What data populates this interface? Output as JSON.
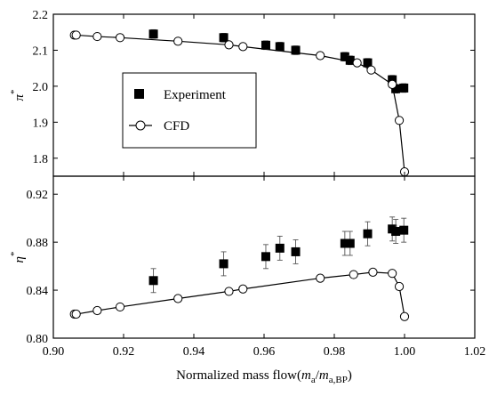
{
  "chart_data": {
    "type": "scatter",
    "shared_x_axis": {
      "label_prefix": "Normalized mass flow(",
      "label_m": "m",
      "label_sub1": "a",
      "label_slash": "/",
      "label_m2": "m",
      "label_sub2": "a,BP",
      "label_suffix": ")",
      "xlim": [
        0.9,
        1.02
      ],
      "ticks": [
        "0.90",
        "0.92",
        "0.94",
        "0.96",
        "0.98",
        "1.00",
        "1.02"
      ],
      "tick_values": [
        0.9,
        0.92,
        0.94,
        0.96,
        0.98,
        1.0,
        1.02
      ]
    },
    "legend": {
      "placement": "upper-left of top panel",
      "entries": [
        {
          "label": "Experiment",
          "marker": "filled-square"
        },
        {
          "label": "CFD",
          "marker": "open-circle-line"
        }
      ]
    },
    "panels": [
      {
        "id": "pressure-ratio",
        "ylabel_symbol": "π",
        "ylabel_sup": "*",
        "ylim": [
          1.75,
          2.2
        ],
        "yticks": [
          "1.8",
          "1.9",
          "2.0",
          "2.1",
          "2.2"
        ],
        "ytick_values": [
          1.8,
          1.9,
          2.0,
          2.1,
          2.2
        ],
        "series": [
          {
            "name": "Experiment",
            "points": [
              {
                "x": 0.9285,
                "y": 2.145,
                "err": 0.012
              },
              {
                "x": 0.9485,
                "y": 2.135,
                "err": 0.012
              },
              {
                "x": 0.9605,
                "y": 2.114,
                "err": 0.012
              },
              {
                "x": 0.9645,
                "y": 2.11,
                "err": 0.012
              },
              {
                "x": 0.969,
                "y": 2.1,
                "err": 0.012
              },
              {
                "x": 0.983,
                "y": 2.082,
                "err": 0.012
              },
              {
                "x": 0.9845,
                "y": 2.072,
                "err": 0.012
              },
              {
                "x": 0.9895,
                "y": 2.065,
                "err": 0.012
              },
              {
                "x": 0.9965,
                "y": 2.018,
                "err": 0.012
              },
              {
                "x": 0.9975,
                "y": 1.993,
                "err": 0.012
              },
              {
                "x": 0.9998,
                "y": 1.995,
                "err": 0.012
              }
            ]
          },
          {
            "name": "CFD",
            "points": [
              {
                "x": 0.906,
                "y": 2.142
              },
              {
                "x": 0.9065,
                "y": 2.142
              },
              {
                "x": 0.9125,
                "y": 2.138
              },
              {
                "x": 0.919,
                "y": 2.135
              },
              {
                "x": 0.9355,
                "y": 2.125
              },
              {
                "x": 0.95,
                "y": 2.115
              },
              {
                "x": 0.954,
                "y": 2.11
              },
              {
                "x": 0.976,
                "y": 2.085
              },
              {
                "x": 0.9865,
                "y": 2.065
              },
              {
                "x": 0.9905,
                "y": 2.045
              },
              {
                "x": 0.9965,
                "y": 2.005
              },
              {
                "x": 0.9985,
                "y": 1.905
              },
              {
                "x": 1.0,
                "y": 1.762
              }
            ]
          }
        ]
      },
      {
        "id": "efficiency",
        "ylabel_symbol": "η",
        "ylabel_sup": "*",
        "ylim": [
          0.8,
          0.935
        ],
        "yticks": [
          "0.80",
          "0.84",
          "0.88",
          "0.92"
        ],
        "ytick_values": [
          0.8,
          0.84,
          0.88,
          0.92
        ],
        "series": [
          {
            "name": "Experiment",
            "points": [
              {
                "x": 0.9285,
                "y": 0.848,
                "err": 0.01
              },
              {
                "x": 0.9485,
                "y": 0.862,
                "err": 0.01
              },
              {
                "x": 0.9605,
                "y": 0.868,
                "err": 0.01
              },
              {
                "x": 0.9645,
                "y": 0.875,
                "err": 0.01
              },
              {
                "x": 0.969,
                "y": 0.872,
                "err": 0.01
              },
              {
                "x": 0.983,
                "y": 0.879,
                "err": 0.01
              },
              {
                "x": 0.9845,
                "y": 0.879,
                "err": 0.01
              },
              {
                "x": 0.9895,
                "y": 0.887,
                "err": 0.01
              },
              {
                "x": 0.9965,
                "y": 0.891,
                "err": 0.01
              },
              {
                "x": 0.9975,
                "y": 0.889,
                "err": 0.01
              },
              {
                "x": 0.9998,
                "y": 0.89,
                "err": 0.01
              }
            ]
          },
          {
            "name": "CFD",
            "points": [
              {
                "x": 0.906,
                "y": 0.82
              },
              {
                "x": 0.9065,
                "y": 0.82
              },
              {
                "x": 0.9125,
                "y": 0.823
              },
              {
                "x": 0.919,
                "y": 0.826
              },
              {
                "x": 0.9355,
                "y": 0.833
              },
              {
                "x": 0.95,
                "y": 0.839
              },
              {
                "x": 0.954,
                "y": 0.841
              },
              {
                "x": 0.976,
                "y": 0.85
              },
              {
                "x": 0.9855,
                "y": 0.853
              },
              {
                "x": 0.991,
                "y": 0.855
              },
              {
                "x": 0.9965,
                "y": 0.854
              },
              {
                "x": 0.9985,
                "y": 0.843
              },
              {
                "x": 1.0,
                "y": 0.818
              }
            ]
          }
        ]
      }
    ]
  }
}
